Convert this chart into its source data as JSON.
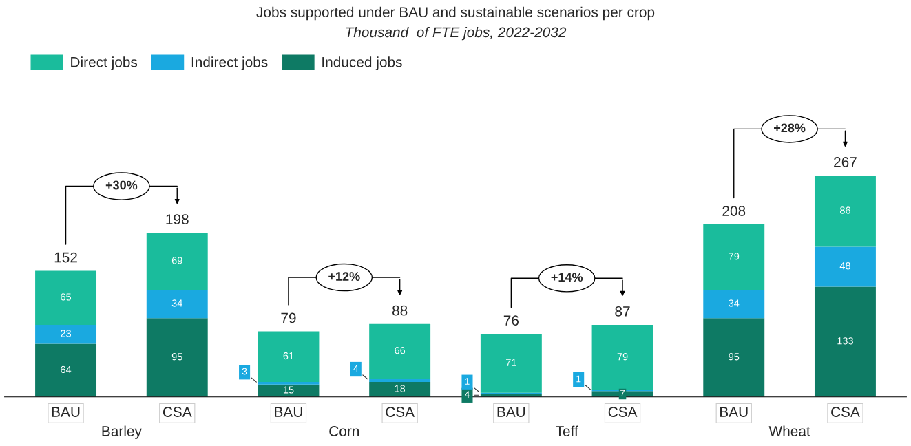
{
  "chart_data": {
    "type": "bar",
    "title": "Jobs supported under BAU and sustainable scenarios per crop",
    "subtitle": "Thousand  of FTE jobs, 2022-2032",
    "categories": [
      "BAU",
      "CSA",
      "BAU",
      "CSA",
      "BAU",
      "CSA",
      "BAU",
      "CSA"
    ],
    "stacked": true,
    "data_labels": true,
    "legend": "top left",
    "tick_labels": "x",
    "grid": false,
    "series": [
      {
        "name": "Induced jobs",
        "color": "#0e7a64",
        "values": [
          64,
          95,
          15,
          18,
          4,
          7,
          95,
          133
        ]
      },
      {
        "name": "Indirect jobs",
        "color": "#1aa9e0",
        "values": [
          23,
          34,
          3,
          4,
          1,
          1,
          34,
          48
        ]
      },
      {
        "name": "Direct jobs",
        "color": "#1abc9c",
        "values": [
          65,
          69,
          61,
          66,
          71,
          79,
          79,
          86
        ]
      }
    ],
    "totals": [
      "152",
      "198",
      "79",
      "88",
      "76",
      "87",
      "208",
      "267"
    ],
    "annotations": [
      "Barley",
      "Corn",
      "Teff",
      "Wheat",
      "+30%",
      "+12%",
      "+14%",
      "+28%"
    ]
  }
}
